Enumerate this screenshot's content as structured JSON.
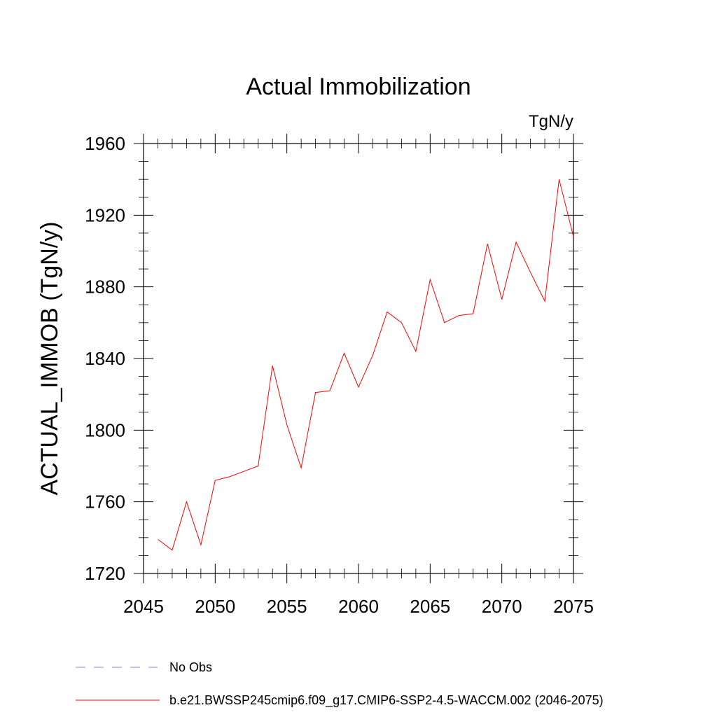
{
  "chart_data": {
    "type": "line",
    "title": "Actual Immobilization",
    "units_label": "TgN/y",
    "xlabel": "",
    "ylabel": "ACTUAL_IMMOB  (TgN/y)",
    "xlim": [
      2045,
      2075
    ],
    "ylim": [
      1720,
      1960
    ],
    "x_ticks": [
      2045,
      2050,
      2055,
      2060,
      2065,
      2070,
      2075
    ],
    "y_ticks": [
      1720,
      1760,
      1800,
      1840,
      1880,
      1920,
      1960
    ],
    "x_tick_labels": [
      "2045",
      "2050",
      "2055",
      "2060",
      "2065",
      "2070",
      "2075"
    ],
    "y_tick_labels": [
      "1720",
      "1760",
      "1800",
      "1840",
      "1880",
      "1920",
      "1960"
    ],
    "series": [
      {
        "name": "b.e21.BWSSP245cmip6.f09_g17.CMIP6-SSP2-4.5-WACCM.002 (2046-2075)",
        "color": "#ff0000",
        "x": [
          2046,
          2047,
          2048,
          2049,
          2050,
          2051,
          2052,
          2053,
          2054,
          2055,
          2056,
          2057,
          2058,
          2059,
          2060,
          2061,
          2062,
          2063,
          2064,
          2065,
          2066,
          2067,
          2068,
          2069,
          2070,
          2071,
          2072,
          2073,
          2074,
          2075
        ],
        "values": [
          1739,
          1733,
          1760,
          1736,
          1772,
          1774,
          1777,
          1780,
          1836,
          1803,
          1779,
          1821,
          1822,
          1843,
          1824,
          1842,
          1866,
          1860,
          1844,
          1884,
          1860,
          1864,
          1865,
          1904,
          1873,
          1905,
          1888,
          1872,
          1940,
          1908
        ]
      }
    ],
    "legend": [
      {
        "label": "No Obs",
        "color": "#8c7cc8",
        "style": "dashed"
      },
      {
        "label": "b.e21.BWSSP245cmip6.f09_g17.CMIP6-SSP2-4.5-WACCM.002 (2046-2075)",
        "color": "#ff0000",
        "style": "solid"
      }
    ],
    "legend_position": "bottom-left",
    "grid": false
  }
}
